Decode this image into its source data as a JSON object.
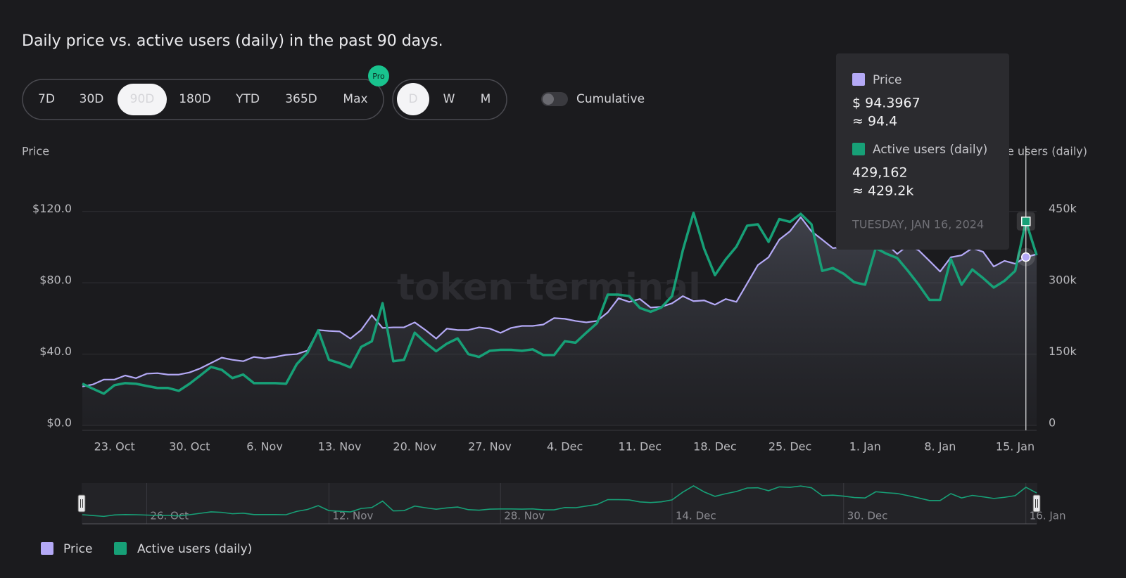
{
  "chart_data": {
    "type": "line",
    "title": "Daily price vs. active users (daily) in the past 90 days.",
    "ylabel": "Price",
    "y2label": "Active users (daily)",
    "watermark": "token terminal",
    "categories": [
      null,
      null,
      null,
      "23. Oct",
      null,
      null,
      null,
      null,
      null,
      null,
      "30. Oct",
      null,
      null,
      null,
      null,
      null,
      null,
      "6. Nov",
      null,
      null,
      null,
      null,
      null,
      null,
      "13. Nov",
      null,
      null,
      null,
      null,
      null,
      null,
      "20. Nov",
      null,
      null,
      null,
      null,
      null,
      null,
      "27. Nov",
      null,
      null,
      null,
      null,
      null,
      null,
      "4. Dec",
      null,
      null,
      null,
      null,
      null,
      null,
      "11. Dec",
      null,
      null,
      null,
      null,
      null,
      null,
      "18. Dec",
      null,
      null,
      null,
      null,
      null,
      null,
      "25. Dec",
      null,
      null,
      null,
      null,
      null,
      null,
      "1. Jan",
      null,
      null,
      null,
      null,
      null,
      null,
      "8. Jan",
      null,
      null,
      null,
      null,
      null,
      null,
      "15. Jan",
      null,
      null
    ],
    "navigator_categories": [
      null,
      null,
      null,
      null,
      null,
      null,
      "26. Oct",
      null,
      null,
      null,
      null,
      null,
      null,
      null,
      null,
      null,
      null,
      null,
      null,
      null,
      null,
      null,
      null,
      "12. Nov",
      null,
      null,
      null,
      null,
      null,
      null,
      null,
      null,
      null,
      null,
      null,
      null,
      null,
      null,
      null,
      "28. Nov",
      null,
      null,
      null,
      null,
      null,
      null,
      null,
      null,
      null,
      null,
      null,
      null,
      null,
      null,
      null,
      "14. Dec",
      null,
      null,
      null,
      null,
      null,
      null,
      null,
      null,
      null,
      null,
      null,
      null,
      null,
      null,
      null,
      "30. Dec",
      null,
      null,
      null,
      null,
      null,
      null,
      null,
      null,
      null,
      null,
      null,
      null,
      null,
      null,
      null,
      null,
      "16. Jan",
      null
    ],
    "series": [
      {
        "name": "Price",
        "color": "#b4a9f6",
        "axis": "y",
        "area": true,
        "values": [
          21.8,
          23,
          25.7,
          25.7,
          28,
          26.5,
          29,
          29.3,
          28.5,
          28.5,
          29.7,
          32,
          35,
          38,
          36.8,
          36,
          38.4,
          37.6,
          38.4,
          39.6,
          40,
          42,
          53.5,
          53,
          52.7,
          48.7,
          53.5,
          61.8,
          54.7,
          55,
          55,
          57.8,
          53.5,
          48.7,
          54.3,
          53.5,
          53.5,
          55,
          54.3,
          51.9,
          54.7,
          55.8,
          55.8,
          56.6,
          60.2,
          59.8,
          58.6,
          57.8,
          58.6,
          63.4,
          71.3,
          69.3,
          70.9,
          66.1,
          66.5,
          68.5,
          72.5,
          69.7,
          70.1,
          67.7,
          70.9,
          69.3,
          79.6,
          89.9,
          94.3,
          104.2,
          108.9,
          116.8,
          108.9,
          104.2,
          99.4,
          100.2,
          99.4,
          99.4,
          99.4,
          101.8,
          96.2,
          101,
          98.2,
          92.3,
          86.3,
          94.3,
          95.4,
          99.4,
          97.4,
          89.1,
          92.3,
          90.7,
          94.3967,
          96
        ]
      },
      {
        "name": "Active users (daily)",
        "color": "#17a077",
        "axis": "y2",
        "values": [
          87600,
          77000,
          66800,
          84600,
          89000,
          87600,
          83000,
          78700,
          78700,
          72800,
          87600,
          105000,
          123000,
          117000,
          99500,
          107000,
          89000,
          89000,
          89000,
          87600,
          129000,
          153000,
          200000,
          138000,
          131000,
          122000,
          165000,
          177000,
          257000,
          135000,
          138000,
          195000,
          174000,
          156000,
          172000,
          183000,
          150000,
          144000,
          157000,
          159000,
          159000,
          157000,
          160000,
          148000,
          148000,
          177000,
          174000,
          195000,
          215000,
          275000,
          275000,
          272000,
          247000,
          239000,
          248000,
          272000,
          368000,
          447000,
          371000,
          316000,
          349000,
          376000,
          420000,
          423000,
          386000,
          434000,
          428000,
          445000,
          423000,
          325000,
          331000,
          319000,
          301000,
          296000,
          373000,
          361000,
          352000,
          325000,
          296000,
          264000,
          264000,
          350000,
          296000,
          328000,
          310000,
          290000,
          304000,
          325000,
          429162,
          358000
        ]
      }
    ],
    "ylim": [
      0,
      140
    ],
    "yticks": [
      {
        "value": 0,
        "label": "$0.0"
      },
      {
        "value": 40,
        "label": "$40.0"
      },
      {
        "value": 80,
        "label": "$80.0"
      },
      {
        "value": 120,
        "label": "$120.0"
      }
    ],
    "y2lim": [
      0,
      525000
    ],
    "y2ticks": [
      0,
      {
        "value": 150000,
        "label": "150k"
      },
      {
        "value": 300000,
        "label": "300k"
      },
      {
        "value": 450000,
        "label": "450k"
      }
    ],
    "grid": true
  },
  "controls": {
    "ranges": [
      {
        "label": "7D",
        "active": false
      },
      {
        "label": "30D",
        "active": false
      },
      {
        "label": "90D",
        "active": true
      },
      {
        "label": "180D",
        "active": false
      },
      {
        "label": "YTD",
        "active": false
      },
      {
        "label": "365D",
        "active": false
      },
      {
        "label": "Max",
        "active": false,
        "badge": "Pro"
      }
    ],
    "granularity": [
      {
        "label": "D",
        "active": true
      },
      {
        "label": "W",
        "active": false
      },
      {
        "label": "M",
        "active": false
      }
    ],
    "toggle": {
      "label": "Cumulative",
      "on": false
    }
  },
  "tooltip": {
    "index": 88,
    "date": "TUESDAY, JAN 16, 2024",
    "items": [
      {
        "exact": "$ 94.3967",
        "approx": "≈ 94.4"
      },
      {
        "exact": "429,162",
        "approx": "≈ 429.2k"
      }
    ]
  }
}
